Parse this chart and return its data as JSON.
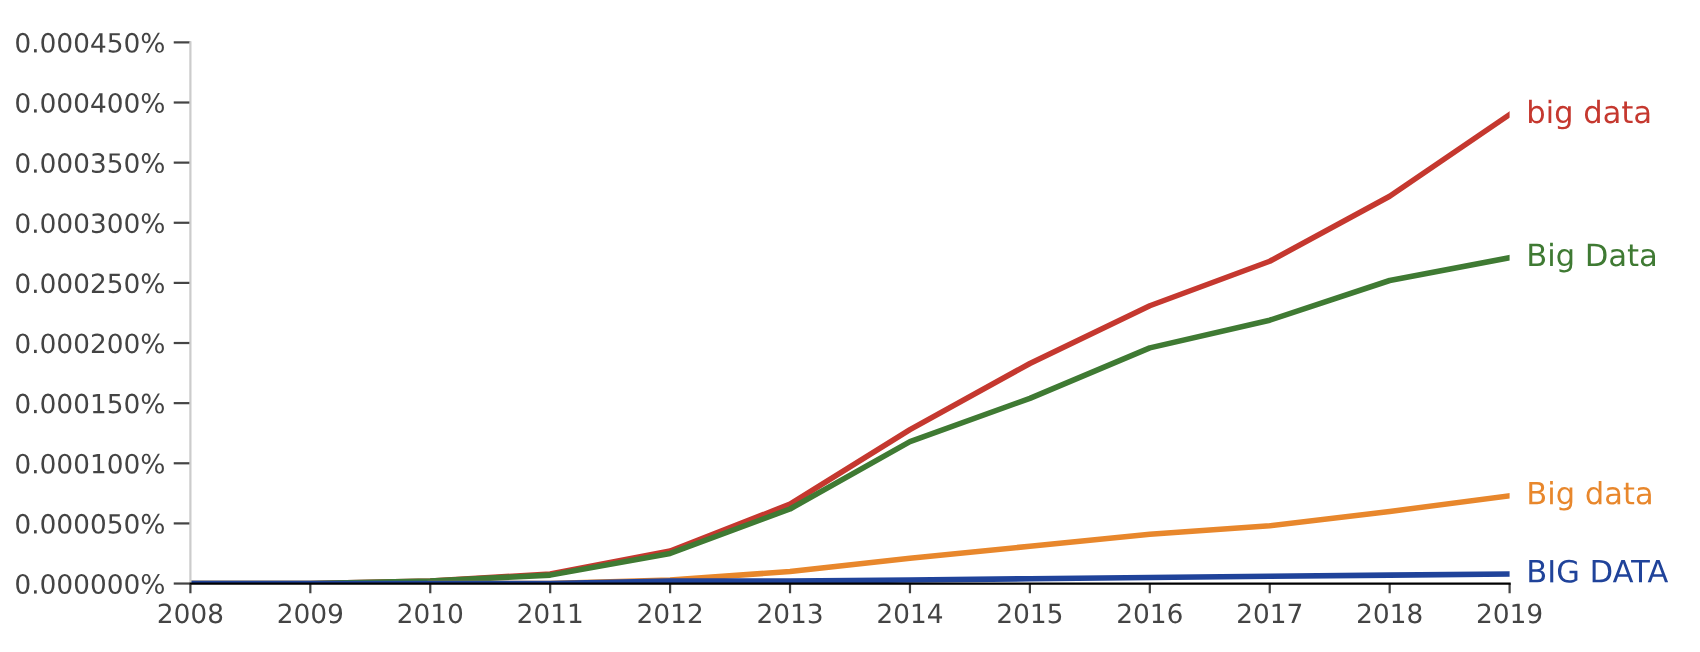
{
  "chart_data": {
    "type": "line",
    "x": [
      2008,
      2009,
      2010,
      2011,
      2012,
      2013,
      2014,
      2015,
      2016,
      2017,
      2018,
      2019
    ],
    "series": [
      {
        "name": "big data",
        "color": "#c5382f",
        "values": [
          0,
          0,
          2e-06,
          8e-06,
          2.7e-05,
          6.6e-05,
          0.000128,
          0.000183,
          0.000231,
          0.000268,
          0.000322,
          0.00039
        ]
      },
      {
        "name": "Big Data",
        "color": "#3f7a33",
        "values": [
          0,
          0,
          2e-06,
          7e-06,
          2.5e-05,
          6.2e-05,
          0.000118,
          0.000154,
          0.000196,
          0.000219,
          0.000252,
          0.000271
        ]
      },
      {
        "name": "Big data",
        "color": "#e8872c",
        "values": [
          null,
          null,
          0,
          0,
          3e-06,
          1e-05,
          2.1e-05,
          3.1e-05,
          4.1e-05,
          4.8e-05,
          6e-05,
          7.3e-05
        ]
      },
      {
        "name": "BIG DATA",
        "color": "#20439a",
        "values": [
          0,
          0,
          0,
          0,
          2e-06,
          2e-06,
          3e-06,
          4e-06,
          5e-06,
          6e-06,
          7e-06,
          8e-06
        ]
      }
    ],
    "xlim": [
      2008,
      2019
    ],
    "xticks": [
      2008,
      2009,
      2010,
      2011,
      2012,
      2013,
      2014,
      2015,
      2016,
      2017,
      2018,
      2019
    ],
    "ylim": [
      0,
      0.00045
    ],
    "yticks": [
      {
        "value": 0,
        "label": "0.000000%"
      },
      {
        "value": 5e-05,
        "label": "0.000050%"
      },
      {
        "value": 0.0001,
        "label": "0.000100%"
      },
      {
        "value": 0.00015,
        "label": "0.000150%"
      },
      {
        "value": 0.0002,
        "label": "0.000200%"
      },
      {
        "value": 0.00025,
        "label": "0.000250%"
      },
      {
        "value": 0.0003,
        "label": "0.000300%"
      },
      {
        "value": 0.00035,
        "label": "0.000350%"
      },
      {
        "value": 0.0004,
        "label": "0.000400%"
      },
      {
        "value": 0.00045,
        "label": "0.000450%"
      }
    ],
    "grid": false,
    "legend": false,
    "marker": "none",
    "line_style": "solid"
  }
}
